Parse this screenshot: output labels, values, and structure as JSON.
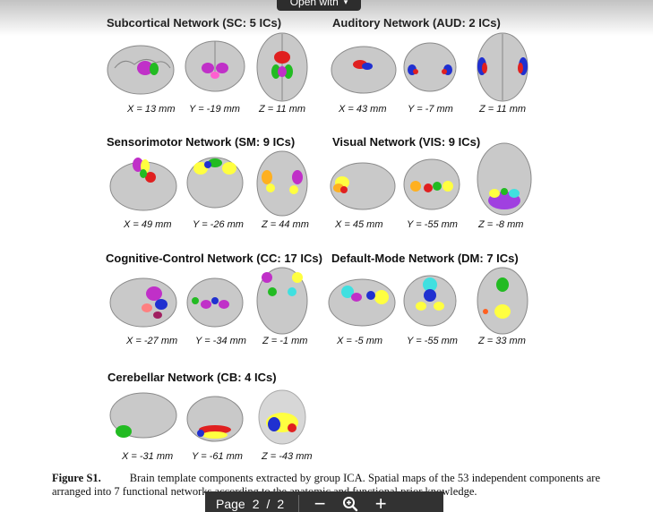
{
  "header": {
    "open_with_label": "Open with"
  },
  "networks": [
    {
      "title": "Subcortical Network (SC: 5 ICs)",
      "coords": [
        "X = 13 mm",
        "Y = -19 mm",
        "Z = 11 mm"
      ]
    },
    {
      "title": "Auditory Network (AUD: 2 ICs)",
      "coords": [
        "X = 43 mm",
        "Y = -7 mm",
        "Z = 11 mm"
      ]
    },
    {
      "title": "Sensorimotor Network (SM: 9 ICs)",
      "coords": [
        "X = 49 mm",
        "Y = -26 mm",
        "Z = 44 mm"
      ]
    },
    {
      "title": "Visual Network (VIS: 9 ICs)",
      "coords": [
        "X = 45 mm",
        "Y = -55 mm",
        "Z = -8 mm"
      ]
    },
    {
      "title": "Cognitive-Control Network (CC: 17 ICs)",
      "coords": [
        "X = -27 mm",
        "Y = -34 mm",
        "Z = -1 mm"
      ]
    },
    {
      "title": "Default-Mode Network (DM: 7 ICs)",
      "coords": [
        "X = -5 mm",
        "Y = -55 mm",
        "Z = 33 mm"
      ]
    },
    {
      "title": "Cerebellar Network (CB: 4 ICs)",
      "coords": [
        "X = -31 mm",
        "Y = -61 mm",
        "Z = -43 mm"
      ]
    }
  ],
  "caption": {
    "lead": "Figure S1.",
    "text": "Brain template components extracted by group ICA. Spatial maps of the 53 independent components are arranged into 7 functional networks according to the anatomic and functional prior knowledge."
  },
  "toolbar": {
    "page_label": "Page",
    "current_page": "2",
    "separator": "/",
    "total_pages": "2",
    "zoom_out_icon": "minus-icon",
    "zoom_icon": "magnifier-icon",
    "zoom_in_icon": "plus-icon"
  }
}
